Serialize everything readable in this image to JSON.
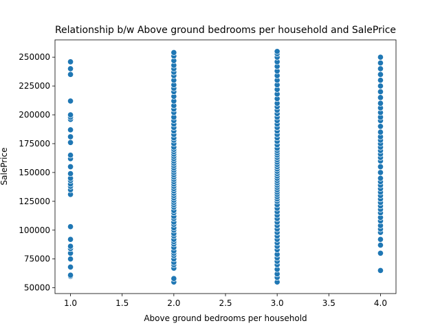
{
  "chart_data": {
    "type": "scatter",
    "title": "Relationship b/w Above ground bedrooms per household and SalePrice",
    "xlabel": "Above ground bedrooms per household",
    "ylabel": "SalePrice",
    "xlim": [
      0.85,
      4.15
    ],
    "ylim": [
      45000,
      265000
    ],
    "xticks": [
      1.0,
      1.5,
      2.0,
      2.5,
      3.0,
      3.5,
      4.0
    ],
    "xtick_labels": [
      "1.0",
      "1.5",
      "2.0",
      "2.5",
      "3.0",
      "3.5",
      "4.0"
    ],
    "yticks": [
      50000,
      75000,
      100000,
      125000,
      150000,
      175000,
      200000,
      225000,
      250000
    ],
    "ytick_labels": [
      "50000",
      "75000",
      "100000",
      "125000",
      "150000",
      "175000",
      "200000",
      "225000",
      "250000"
    ],
    "grid": false,
    "marker_color": "#1f77b4",
    "marker_edge_color": "#ffffff",
    "series": [
      {
        "x": 1.0,
        "y": [
          60000,
          61000,
          68000,
          75000,
          80000,
          84000,
          86000,
          92000,
          103000,
          131000,
          135000,
          138000,
          140000,
          143000,
          145000,
          149000,
          155000,
          162000,
          165000,
          176000,
          181000,
          187000,
          196000,
          198000,
          200000,
          212000,
          235000,
          240000,
          246000
        ]
      },
      {
        "x": 2.0,
        "y": [
          55000,
          58000,
          67000,
          70000,
          72000,
          75000,
          78000,
          80000,
          82000,
          85000,
          88000,
          90000,
          92000,
          95000,
          97000,
          100000,
          102000,
          105000,
          107000,
          110000,
          112000,
          115000,
          117000,
          120000,
          122000,
          124000,
          126000,
          128000,
          130000,
          132000,
          134000,
          136000,
          138000,
          140000,
          142000,
          144000,
          146000,
          148000,
          150000,
          152000,
          154000,
          156000,
          158000,
          160000,
          162000,
          164000,
          166000,
          168000,
          170000,
          172000,
          175000,
          178000,
          180000,
          183000,
          186000,
          189000,
          192000,
          195000,
          198000,
          202000,
          205000,
          208000,
          212000,
          216000,
          220000,
          223000,
          226000,
          230000,
          234000,
          237000,
          240000,
          243000,
          247000,
          251000,
          254000
        ]
      },
      {
        "x": 3.0,
        "y": [
          55000,
          59000,
          62000,
          66000,
          70000,
          73000,
          76000,
          79000,
          83000,
          86000,
          89000,
          92000,
          95000,
          98000,
          101000,
          104000,
          107000,
          110000,
          113000,
          116000,
          119000,
          122000,
          125000,
          127000,
          129000,
          131000,
          133000,
          135000,
          137000,
          139000,
          141000,
          143000,
          145000,
          147000,
          149000,
          151000,
          153000,
          155000,
          157000,
          159000,
          161000,
          163000,
          165000,
          167000,
          169000,
          171000,
          174000,
          177000,
          180000,
          183000,
          186000,
          189000,
          192000,
          195000,
          198000,
          201000,
          204000,
          207000,
          210000,
          214000,
          218000,
          222000,
          226000,
          230000,
          234000,
          238000,
          242000,
          246000,
          250000,
          253000,
          255000
        ]
      },
      {
        "x": 4.0,
        "y": [
          65000,
          80000,
          87000,
          92000,
          98000,
          101000,
          104000,
          108000,
          111000,
          115000,
          118000,
          121000,
          124000,
          127000,
          130000,
          133000,
          136000,
          139000,
          142000,
          145000,
          150000,
          155000,
          160000,
          163000,
          166000,
          169000,
          172000,
          175000,
          178000,
          181000,
          185000,
          190000,
          195000,
          198000,
          202000,
          206000,
          210000,
          215000,
          220000,
          225000,
          230000,
          235000,
          240000,
          245000,
          250000
        ]
      }
    ]
  }
}
